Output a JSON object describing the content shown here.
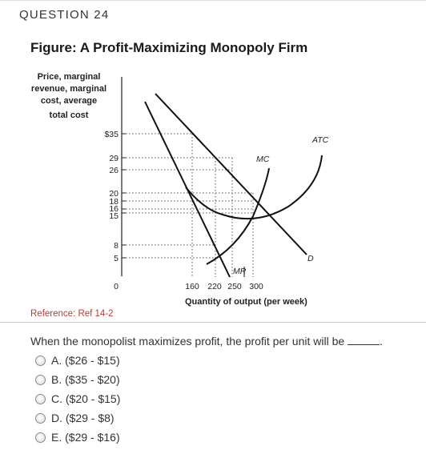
{
  "question": {
    "header": "QUESTION 24"
  },
  "figure": {
    "title": "Figure: A Profit-Maximizing Monopoly Firm",
    "y_axis_label": [
      "Price, marginal",
      "revenue, marginal",
      "cost, average",
      "total cost"
    ],
    "x_axis_label": "Quantity of output (per week)",
    "y_ticks": [
      "$35",
      "29",
      "26",
      "20",
      "18",
      "16",
      "15",
      "8",
      "5",
      "0"
    ],
    "x_ticks": [
      "160",
      "220",
      "250",
      "300"
    ],
    "curve_labels": {
      "atc": "ATC",
      "mc": "MC",
      "mr": "MR",
      "d": "D"
    }
  },
  "reference": "Reference: Ref 14-2",
  "prompt": "When the monopolist maximizes profit, the profit per unit will be",
  "options": [
    {
      "label": "A. ($26 - $15)"
    },
    {
      "label": "B. ($35 - $20)"
    },
    {
      "label": "C. ($20 - $15)"
    },
    {
      "label": "D. ($29 - $8)"
    },
    {
      "label": "E. ($29 - $16)"
    }
  ],
  "colors": {
    "reference": "#c0392b",
    "text": "#333333"
  }
}
